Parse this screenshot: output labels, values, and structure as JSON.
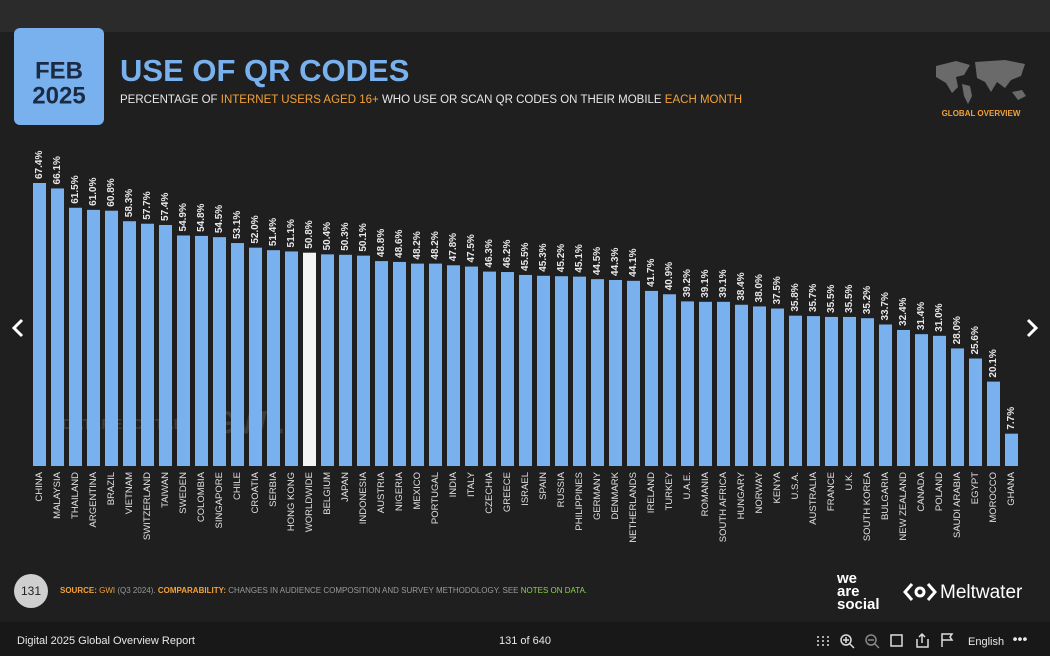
{
  "header": {
    "month": "FEB",
    "year": "2025",
    "title": "USE OF QR CODES",
    "subtitle": [
      "PERCENTAGE OF",
      "INTERNET USERS AGED 16+",
      "WHO USE OR SCAN QR CODES ON THEIR MOBILE",
      "EACH MONTH"
    ],
    "badge": "GLOBAL OVERVIEW"
  },
  "watermark": [
    "DATAREPORTAL",
    "GWI."
  ],
  "chart_data": {
    "type": "bar",
    "categories": [
      "CHINA",
      "MALAYSIA",
      "THAILAND",
      "ARGENTINA",
      "BRAZIL",
      "VIETNAM",
      "SWITZERLAND",
      "TAIWAN",
      "SWEDEN",
      "COLOMBIA",
      "SINGAPORE",
      "CHILE",
      "CROATIA",
      "SERBIA",
      "HONG KONG",
      "WORLDWIDE",
      "BELGIUM",
      "JAPAN",
      "INDONESIA",
      "AUSTRIA",
      "NIGERIA",
      "MEXICO",
      "PORTUGAL",
      "INDIA",
      "ITALY",
      "CZECHIA",
      "GREECE",
      "ISRAEL",
      "SPAIN",
      "RUSSIA",
      "PHILIPPINES",
      "GERMANY",
      "DENMARK",
      "NETHERLANDS",
      "IRELAND",
      "TURKEY",
      "U.A.E.",
      "ROMANIA",
      "SOUTH AFRICA",
      "HUNGARY",
      "NORWAY",
      "KENYA",
      "U.S.A.",
      "AUSTRALIA",
      "FRANCE",
      "U.K.",
      "SOUTH KOREA",
      "BULGARIA",
      "NEW ZEALAND",
      "CANADA",
      "POLAND",
      "SAUDI ARABIA",
      "EGYPT",
      "MOROCCO",
      "GHANA"
    ],
    "values": [
      67.4,
      66.1,
      61.5,
      61.0,
      60.8,
      58.3,
      57.7,
      57.4,
      54.9,
      54.8,
      54.5,
      53.1,
      52.0,
      51.4,
      51.1,
      50.8,
      50.4,
      50.3,
      50.1,
      48.8,
      48.6,
      48.2,
      48.2,
      47.8,
      47.5,
      46.3,
      46.2,
      45.5,
      45.3,
      45.2,
      45.1,
      44.5,
      44.3,
      44.1,
      41.7,
      40.9,
      39.2,
      39.1,
      39.1,
      38.4,
      38.0,
      37.5,
      35.8,
      35.7,
      35.5,
      35.5,
      35.2,
      33.7,
      32.4,
      31.4,
      31.0,
      28.0,
      25.6,
      20.1,
      7.7
    ],
    "value_labels": [
      "67.4%",
      "66.1%",
      "61.5%",
      "61.0%",
      "60.8%",
      "58.3%",
      "57.7%",
      "57.4%",
      "54.9%",
      "54.8%",
      "54.5%",
      "53.1%",
      "52.0%",
      "51.4%",
      "51.1%",
      "50.8%",
      "50.4%",
      "50.3%",
      "50.1%",
      "48.8%",
      "48.6%",
      "48.2%",
      "48.2%",
      "47.8%",
      "47.5%",
      "46.3%",
      "46.2%",
      "45.5%",
      "45.3%",
      "45.2%",
      "45.1%",
      "44.5%",
      "44.3%",
      "44.1%",
      "41.7%",
      "40.9%",
      "39.2%",
      "39.1%",
      "39.1%",
      "38.4%",
      "38.0%",
      "37.5%",
      "35.8%",
      "35.7%",
      "35.5%",
      "35.5%",
      "35.2%",
      "33.7%",
      "32.4%",
      "31.4%",
      "31.0%",
      "28.0%",
      "25.6%",
      "20.1%",
      "7.7%"
    ],
    "color": "#78b1ee",
    "highlight": {
      "category": "WORLDWIDE",
      "color": "#f4f4f4"
    }
  },
  "footer": {
    "page_number": "131",
    "source": [
      "SOURCE:",
      "GWI",
      "(Q3 2024).",
      "COMPARABILITY:",
      "CHANGES IN AUDIENCE COMPOSITION AND SURVEY METHODOLOGY. SEE",
      "NOTES ON DATA",
      "."
    ],
    "logos": [
      "we",
      "are",
      "social",
      "Meltwater"
    ]
  },
  "viewer": {
    "report_title": "Digital 2025 Global Overview Report",
    "page_indicator": "131 of 640",
    "language": "English"
  }
}
